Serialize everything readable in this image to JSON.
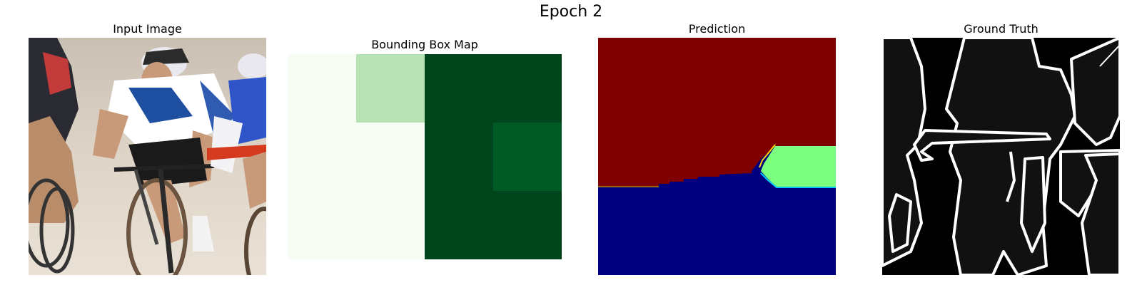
{
  "figure": {
    "suptitle": "Epoch 2",
    "panels": [
      {
        "title": "Input Image",
        "content": "photo of track cyclists racing on a velodrome"
      },
      {
        "title": "Bounding Box Map",
        "colormap": "Greens"
      },
      {
        "title": "Prediction",
        "colormap": "jet",
        "classes": [
          "dark red (top)",
          "dark blue (bottom)",
          "green (right patch)"
        ]
      },
      {
        "title": "Ground Truth",
        "colormap": "gray"
      }
    ]
  },
  "colors": {
    "bbox_light": "#f7fcf5",
    "bbox_mid": "#b7e2b3",
    "bbox_dark": "#00451c",
    "bbox_dark2": "#005a24",
    "pred_red": "#7f0000",
    "pred_blue": "#00007f",
    "pred_green": "#7aff7e",
    "gt_region": "#111111",
    "gt_edge": "#ffffff"
  }
}
